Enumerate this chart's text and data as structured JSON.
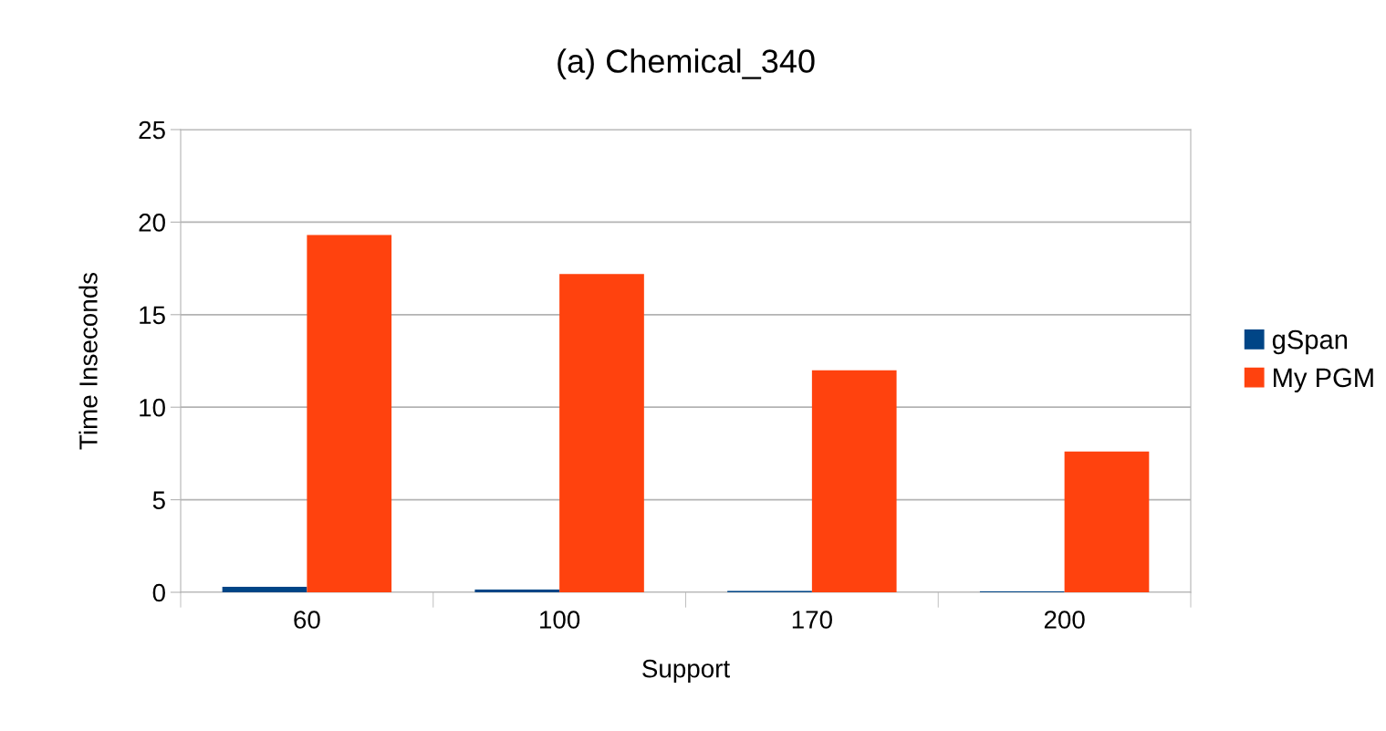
{
  "chart_data": {
    "type": "bar",
    "title": "(a) Chemical_340",
    "xlabel": "Support",
    "ylabel": "Time Inseconds",
    "categories": [
      "60",
      "100",
      "170",
      "200"
    ],
    "series": [
      {
        "name": "gSpan",
        "color": "#004586",
        "values": [
          0.3,
          0.15,
          0.08,
          0.05
        ]
      },
      {
        "name": "My PGM",
        "color": "#ff420e",
        "values": [
          19.3,
          17.2,
          12.0,
          7.6
        ]
      }
    ],
    "ylim": [
      0,
      25
    ],
    "yticks": [
      0,
      5,
      10,
      15,
      20,
      25
    ],
    "grid": "y",
    "legend": "right"
  }
}
